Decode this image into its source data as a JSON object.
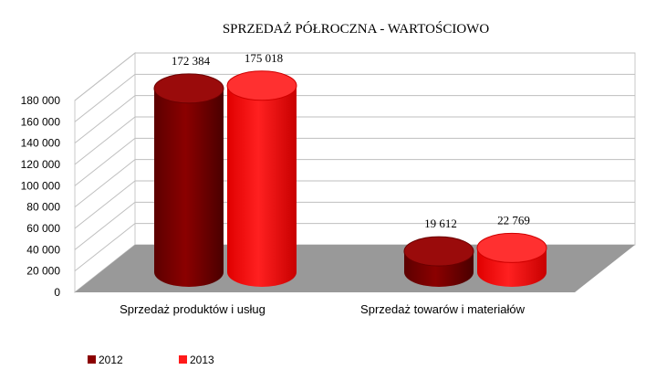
{
  "chart_data": {
    "type": "bar",
    "title": "SPRZEDAŻ PÓŁROCZNA - WARTOŚCIOWO",
    "categories": [
      "Sprzedaż produktów i usług",
      "Sprzedaż towarów i materiałów"
    ],
    "series": [
      {
        "name": "2012",
        "values": [
          172384,
          19612
        ],
        "labels": [
          "172 384",
          "19 612"
        ],
        "color": "#8b0000"
      },
      {
        "name": "2013",
        "values": [
          175018,
          22769
        ],
        "labels": [
          "175 018",
          "22 769"
        ],
        "color": "#ff1a1a"
      }
    ],
    "ylim": [
      0,
      180000
    ],
    "yticks": [
      0,
      20000,
      40000,
      60000,
      80000,
      100000,
      120000,
      140000,
      160000,
      180000
    ],
    "ytick_labels": [
      "0",
      "20 000",
      "40 000",
      "60 000",
      "80 000",
      "100 000",
      "120 000",
      "140 000",
      "160 000",
      "180 000"
    ],
    "grid": true,
    "legend_position": "bottom-left",
    "shape": "cylinder-3d",
    "floor_color": "#999999"
  }
}
